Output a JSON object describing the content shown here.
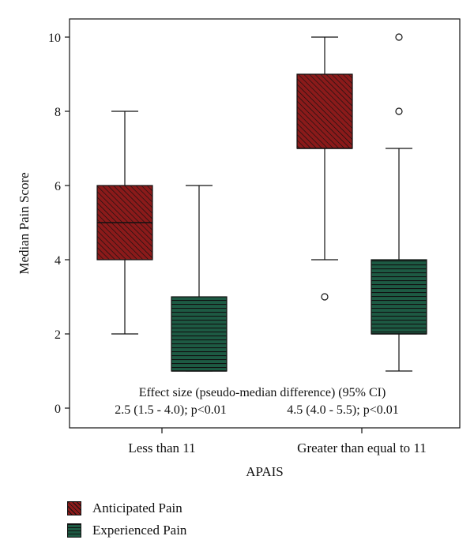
{
  "chart_data": {
    "type": "boxplot",
    "xlabel": "APAIS",
    "ylabel": "Median Pain Score",
    "ylim": [
      0,
      10
    ],
    "yticks": [
      "0",
      "2",
      "4",
      "6",
      "8",
      "10"
    ],
    "categories": [
      "Less than 11",
      "Greater than equal to 11"
    ],
    "series": [
      {
        "name": "Anticipated Pain",
        "color": "#8b1a1a",
        "boxes": [
          {
            "whisker_low": 2,
            "q1": 4,
            "median": 5,
            "q3": 6,
            "whisker_high": 8,
            "outliers": []
          },
          {
            "whisker_low": 4,
            "q1": 7,
            "median": 7,
            "q3": 9,
            "whisker_high": 10,
            "outliers": [
              3
            ]
          }
        ]
      },
      {
        "name": "Experienced Pain",
        "color": "#1d5a43",
        "boxes": [
          {
            "whisker_low": 1,
            "q1": 1,
            "median": 1,
            "q3": 3,
            "whisker_high": 6,
            "outliers": []
          },
          {
            "whisker_low": 1,
            "q1": 2,
            "median": 2,
            "q3": 4,
            "whisker_high": 7,
            "outliers": [
              8,
              10
            ]
          }
        ]
      }
    ],
    "annotation": {
      "title": "Effect size (pseudo-median difference) (95% CI)",
      "values": [
        "2.5 (1.5 - 4.0); p<0.01",
        "4.5 (4.0 - 5.5); p<0.01"
      ]
    },
    "legend_position": "bottom-left",
    "grid": false
  }
}
